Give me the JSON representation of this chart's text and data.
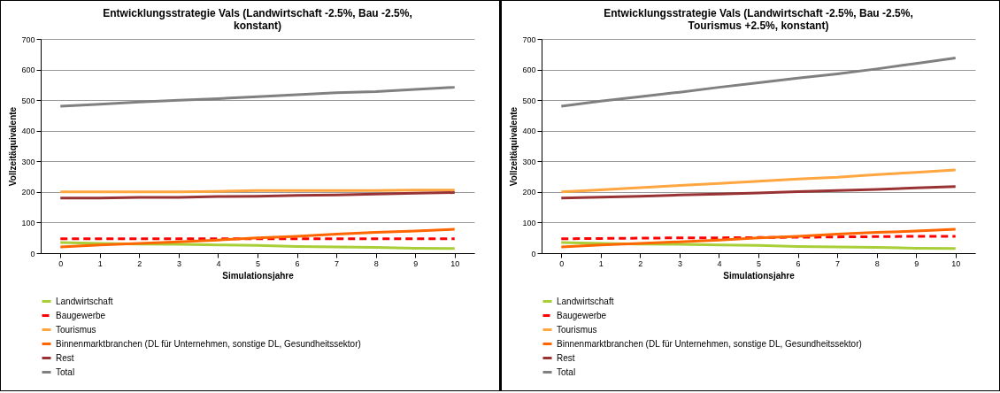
{
  "chart_data": [
    {
      "type": "line",
      "title": "Entwicklungsstrategie Vals (Landwirtschaft -2.5%, Bau -2.5%, konstant)",
      "xlabel": "Simulationsjahre",
      "ylabel": "Vollzeitäquivalente",
      "categories": [
        "0",
        "1",
        "2",
        "3",
        "4",
        "5",
        "6",
        "7",
        "8",
        "9",
        "10"
      ],
      "ylim": [
        0,
        700
      ],
      "yticks": [
        0,
        100,
        200,
        300,
        400,
        500,
        600,
        700
      ],
      "grid": "y",
      "legend": "bottom",
      "series": [
        {
          "name": "Landwirtschaft",
          "color": "#a8cf38",
          "values": [
            35,
            32,
            30,
            29,
            27,
            25,
            22,
            20,
            19,
            16,
            15
          ]
        },
        {
          "name": "Baugewerbe",
          "color": "#ff0000",
          "line_style": "dashed",
          "values": [
            47,
            47,
            47,
            47,
            47,
            47,
            47,
            47,
            47,
            47,
            47
          ]
        },
        {
          "name": "Tourismus",
          "color": "#ffa640",
          "values": [
            200,
            200,
            200,
            200,
            202,
            205,
            205,
            205,
            205,
            206,
            206
          ]
        },
        {
          "name": "Binnenmarktbranchen (DL für Unternehmen, sonstige DL, Gesundheitssektor)",
          "color": "#ff6600",
          "values": [
            20,
            27,
            32,
            37,
            43,
            50,
            55,
            62,
            68,
            72,
            78
          ]
        },
        {
          "name": "Rest",
          "color": "#993333",
          "values": [
            180,
            180,
            182,
            182,
            185,
            186,
            189,
            190,
            193,
            196,
            198
          ]
        },
        {
          "name": "Total",
          "color": "#808080",
          "values": [
            480,
            487,
            494,
            500,
            505,
            511,
            518,
            524,
            528,
            535,
            542
          ]
        }
      ]
    },
    {
      "type": "line",
      "title": "Entwicklungsstrategie Vals (Landwirtschaft -2.5%, Bau -2.5%, Tourismus +2.5%, konstant)",
      "xlabel": "Simulationsjahre",
      "ylabel": "Vollzeitäquivalente",
      "categories": [
        "0",
        "1",
        "2",
        "3",
        "4",
        "5",
        "6",
        "7",
        "8",
        "9",
        "10"
      ],
      "ylim": [
        0,
        700
      ],
      "yticks": [
        0,
        100,
        200,
        300,
        400,
        500,
        600,
        700
      ],
      "grid": "y",
      "legend": "bottom",
      "series": [
        {
          "name": "Landwirtschaft",
          "color": "#a8cf38",
          "values": [
            35,
            32,
            30,
            29,
            27,
            25,
            22,
            20,
            19,
            16,
            15
          ]
        },
        {
          "name": "Baugewerbe",
          "color": "#ff0000",
          "line_style": "dashed",
          "values": [
            47,
            48,
            49,
            50,
            50,
            51,
            52,
            53,
            54,
            55,
            55
          ]
        },
        {
          "name": "Tourismus",
          "color": "#ffa640",
          "values": [
            200,
            207,
            214,
            221,
            228,
            235,
            242,
            248,
            257,
            264,
            272
          ]
        },
        {
          "name": "Binnenmarktbranchen (DL für Unternehmen, sonstige DL, Gesundheitssektor)",
          "color": "#ff6600",
          "values": [
            20,
            27,
            32,
            37,
            43,
            50,
            55,
            62,
            68,
            72,
            78
          ]
        },
        {
          "name": "Rest",
          "color": "#993333",
          "values": [
            180,
            183,
            186,
            190,
            193,
            197,
            201,
            205,
            208,
            213,
            218
          ]
        },
        {
          "name": "Total",
          "color": "#808080",
          "values": [
            480,
            497,
            511,
            526,
            542,
            557,
            572,
            586,
            602,
            620,
            638
          ]
        }
      ]
    }
  ]
}
